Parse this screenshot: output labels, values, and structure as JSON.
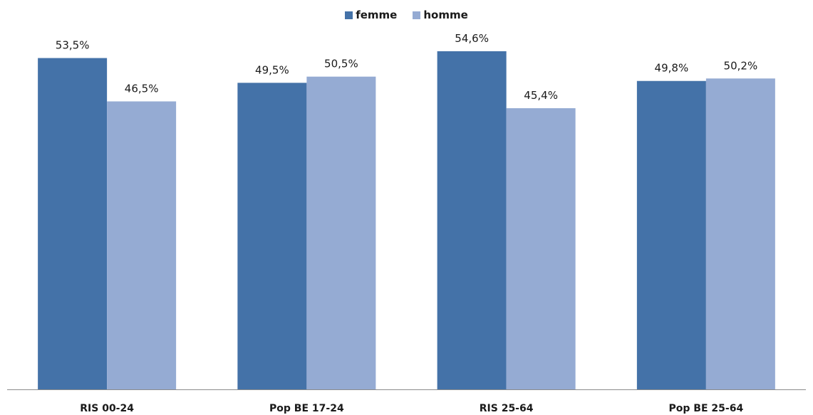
{
  "chart_data": {
    "type": "bar",
    "categories": [
      "RIS 00-24",
      "Pop BE 17-24",
      "RIS 25-64",
      "Pop BE 25-64"
    ],
    "series": [
      {
        "name": "femme",
        "values": [
          53.5,
          49.5,
          54.6,
          49.8
        ],
        "labels": [
          "53,5%",
          "49,5%",
          "54,6%",
          "49,8%"
        ],
        "color": "#4472a8"
      },
      {
        "name": "homme",
        "values": [
          46.5,
          50.5,
          45.4,
          50.2
        ],
        "labels": [
          "46,5%",
          "50,5%",
          "45,4%",
          "50,2%"
        ],
        "color": "#95abd3"
      }
    ],
    "ylim": [
      0,
      60
    ],
    "grid": false,
    "legend_position": "top-center",
    "xlabel": "",
    "ylabel": ""
  }
}
